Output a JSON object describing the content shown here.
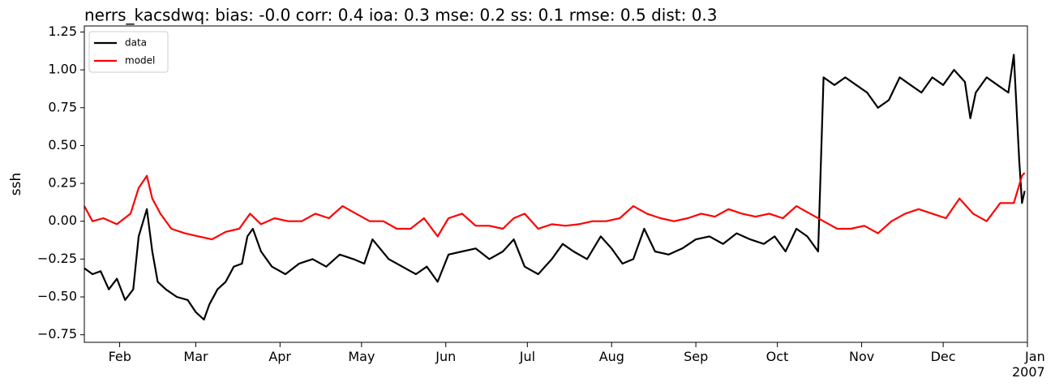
{
  "chart_data": {
    "type": "line",
    "title": "nerrs_kacsdwq: bias: -0.0  corr: 0.4  ioa: 0.3  mse: 0.2  ss: 0.1  rmse: 0.5  dist: 0.3",
    "y_label": "ssh",
    "xlim": [
      18,
      365
    ],
    "xticks": [
      {
        "value": 31,
        "label": "Feb"
      },
      {
        "value": 59,
        "label": "Mar"
      },
      {
        "value": 90,
        "label": "Apr"
      },
      {
        "value": 120,
        "label": "May"
      },
      {
        "value": 151,
        "label": "Jun"
      },
      {
        "value": 181,
        "label": "Jul"
      },
      {
        "value": 212,
        "label": "Aug"
      },
      {
        "value": 243,
        "label": "Sep"
      },
      {
        "value": 273,
        "label": "Oct"
      },
      {
        "value": 304,
        "label": "Nov"
      },
      {
        "value": 334,
        "label": "Dec"
      },
      {
        "value": 365,
        "label": "Jan\n2007"
      }
    ],
    "ylim": [
      -0.8,
      1.29
    ],
    "yticks": [
      {
        "value": -0.75,
        "label": "−0.75"
      },
      {
        "value": -0.5,
        "label": "−0.50"
      },
      {
        "value": -0.25,
        "label": "−0.25"
      },
      {
        "value": 0,
        "label": "0.00"
      },
      0.25,
      {
        "value": 0.5,
        "label": "0.50"
      },
      0.75,
      {
        "value": 1,
        "label": "1.00"
      },
      1.25
    ],
    "legend": "upper left",
    "series": [
      {
        "name": "data",
        "color": "#000000",
        "x": [
          18,
          21,
          24,
          27,
          30,
          33,
          36,
          38,
          41,
          43,
          45,
          48,
          52,
          56,
          59,
          62,
          64,
          67,
          70,
          73,
          76,
          78,
          80,
          83,
          87,
          92,
          97,
          102,
          107,
          112,
          117,
          121,
          124,
          130,
          135,
          140,
          144,
          148,
          152,
          157,
          162,
          167,
          172,
          176,
          180,
          185,
          190,
          194,
          198,
          203,
          208,
          212,
          216,
          220,
          224,
          228,
          233,
          238,
          243,
          248,
          253,
          258,
          263,
          268,
          272,
          276,
          280,
          284,
          288,
          290,
          294,
          298,
          302,
          306,
          310,
          314,
          318,
          322,
          326,
          330,
          334,
          338,
          342,
          344,
          346,
          350,
          354,
          358,
          360,
          362,
          363,
          364
        ],
        "values": [
          -0.31,
          -0.35,
          -0.33,
          -0.45,
          -0.38,
          -0.52,
          -0.45,
          -0.1,
          0.08,
          -0.2,
          -0.4,
          -0.45,
          -0.5,
          -0.52,
          -0.6,
          -0.65,
          -0.55,
          -0.45,
          -0.4,
          -0.3,
          -0.28,
          -0.1,
          -0.05,
          -0.2,
          -0.3,
          -0.35,
          -0.28,
          -0.25,
          -0.3,
          -0.22,
          -0.25,
          -0.28,
          -0.12,
          -0.25,
          -0.3,
          -0.35,
          -0.3,
          -0.4,
          -0.22,
          -0.2,
          -0.18,
          -0.25,
          -0.2,
          -0.12,
          -0.3,
          -0.35,
          -0.25,
          -0.15,
          -0.2,
          -0.25,
          -0.1,
          -0.18,
          -0.28,
          -0.25,
          -0.05,
          -0.2,
          -0.22,
          -0.18,
          -0.12,
          -0.1,
          -0.15,
          -0.08,
          -0.12,
          -0.15,
          -0.1,
          -0.2,
          -0.05,
          -0.1,
          -0.2,
          0.95,
          0.9,
          0.95,
          0.9,
          0.85,
          0.75,
          0.8,
          0.95,
          0.9,
          0.85,
          0.95,
          0.9,
          1.0,
          0.92,
          0.68,
          0.85,
          0.95,
          0.9,
          0.85,
          1.1,
          0.4,
          0.12,
          0.2
        ]
      },
      {
        "name": "model",
        "color": "#ff0000",
        "x": [
          18,
          21,
          25,
          30,
          35,
          38,
          41,
          43,
          46,
          50,
          55,
          60,
          65,
          70,
          75,
          79,
          83,
          88,
          93,
          98,
          103,
          108,
          113,
          118,
          123,
          128,
          133,
          138,
          143,
          148,
          152,
          157,
          162,
          167,
          172,
          176,
          180,
          185,
          190,
          195,
          200,
          205,
          210,
          215,
          220,
          225,
          230,
          235,
          240,
          245,
          250,
          255,
          260,
          265,
          270,
          275,
          280,
          285,
          290,
          295,
          300,
          305,
          310,
          315,
          320,
          325,
          330,
          335,
          340,
          345,
          350,
          355,
          360,
          363,
          364
        ],
        "values": [
          0.1,
          0.0,
          0.02,
          -0.02,
          0.05,
          0.22,
          0.3,
          0.15,
          0.05,
          -0.05,
          -0.08,
          -0.1,
          -0.12,
          -0.07,
          -0.05,
          0.05,
          -0.02,
          0.02,
          0.0,
          0.0,
          0.05,
          0.02,
          0.1,
          0.05,
          0.0,
          0.0,
          -0.05,
          -0.05,
          0.02,
          -0.1,
          0.02,
          0.05,
          -0.03,
          -0.03,
          -0.05,
          0.02,
          0.05,
          -0.05,
          -0.02,
          -0.03,
          -0.02,
          0.0,
          0.0,
          0.02,
          0.1,
          0.05,
          0.02,
          0.0,
          0.02,
          0.05,
          0.03,
          0.08,
          0.05,
          0.03,
          0.05,
          0.02,
          0.1,
          0.05,
          0.0,
          -0.05,
          -0.05,
          -0.03,
          -0.08,
          0.0,
          0.05,
          0.08,
          0.05,
          0.02,
          0.15,
          0.05,
          0.0,
          0.12,
          0.12,
          0.3,
          0.32
        ]
      }
    ]
  }
}
